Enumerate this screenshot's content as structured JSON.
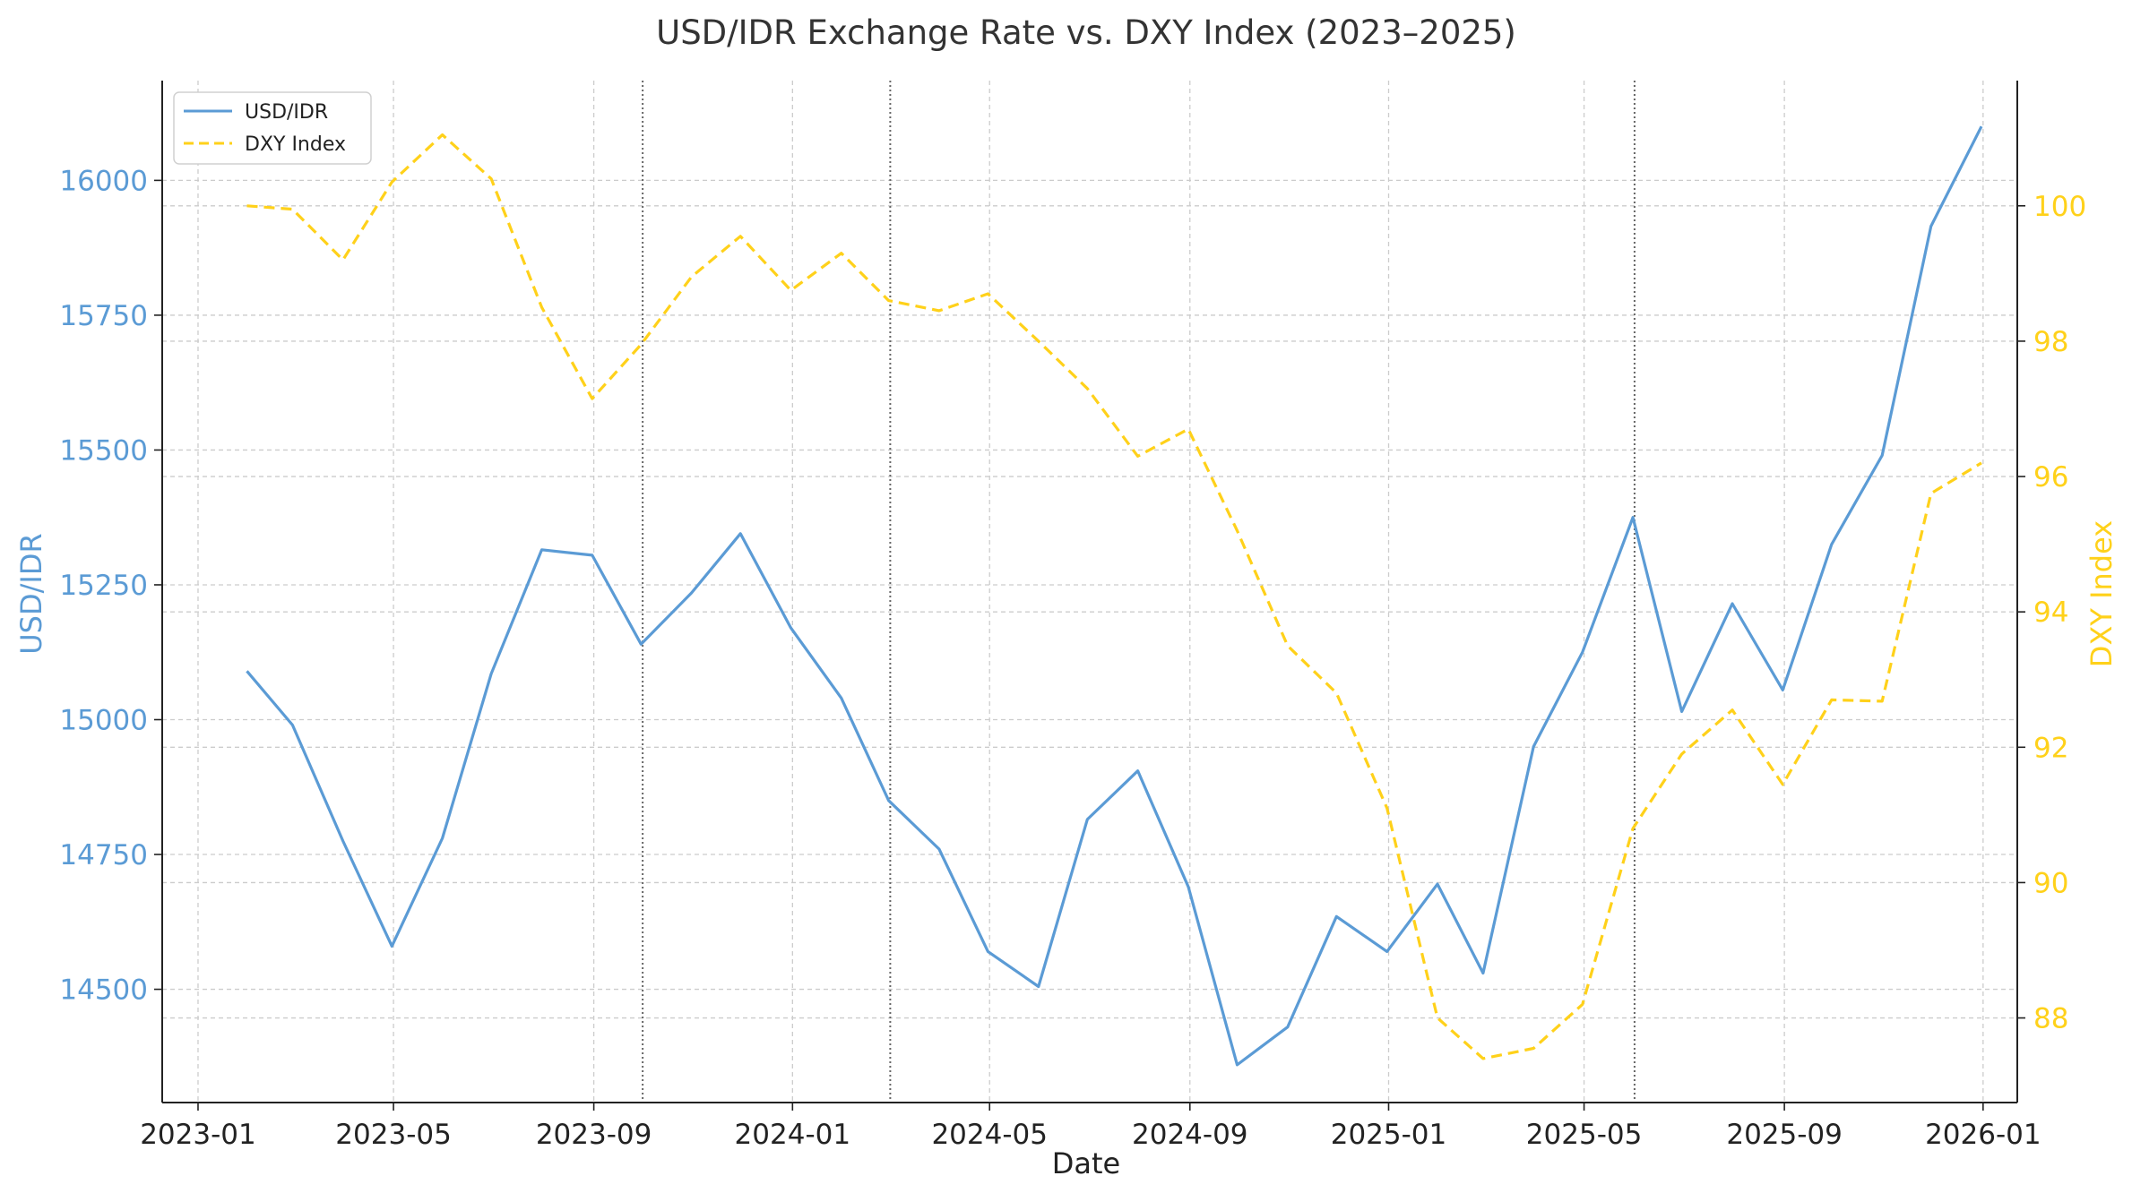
{
  "chart_data": {
    "type": "line",
    "title": "USD/IDR Exchange Rate vs. DXY Index (2023–2025)",
    "xlabel": "Date",
    "x_ticks": [
      "2023-01",
      "2023-05",
      "2023-09",
      "2024-01",
      "2024-05",
      "2024-09",
      "2025-01",
      "2025-05",
      "2025-09",
      "2026-01"
    ],
    "x_range": [
      "2022-12-10",
      "2026-01-22"
    ],
    "dates": [
      "2023-01-31",
      "2023-02-28",
      "2023-03-31",
      "2023-04-30",
      "2023-05-31",
      "2023-06-30",
      "2023-07-31",
      "2023-08-31",
      "2023-09-30",
      "2023-10-31",
      "2023-11-30",
      "2023-12-31",
      "2024-01-31",
      "2024-02-29",
      "2024-03-31",
      "2024-04-30",
      "2024-05-31",
      "2024-06-30",
      "2024-07-31",
      "2024-08-31",
      "2024-09-30",
      "2024-10-31",
      "2024-11-30",
      "2024-12-31",
      "2025-01-31",
      "2025-02-28",
      "2025-03-31",
      "2025-04-30",
      "2025-05-31",
      "2025-06-30",
      "2025-07-31",
      "2025-08-31",
      "2025-09-30",
      "2025-10-31",
      "2025-11-30",
      "2025-12-31"
    ],
    "event_lines": [
      "2023-10-01",
      "2024-03-01",
      "2025-06-01"
    ],
    "grid": true,
    "legend_position": "top-left",
    "y_left": {
      "label": "USD/IDR",
      "range": [
        14290,
        16185
      ],
      "ticks": [
        14500,
        14750,
        15000,
        15250,
        15500,
        15750,
        16000
      ],
      "color": "#5b9bd5"
    },
    "y_right": {
      "label": "DXY Index",
      "range": [
        86.75,
        101.85
      ],
      "ticks": [
        88,
        90,
        92,
        94,
        96,
        98,
        100
      ],
      "color": "#ffd11a"
    },
    "series": [
      {
        "name": "USD/IDR",
        "axis": "left",
        "style": "solid",
        "color": "#5b9bd5",
        "values": [
          15090,
          14990,
          14775,
          14580,
          14780,
          15085,
          15315,
          15305,
          15140,
          15235,
          15345,
          15170,
          15040,
          14850,
          14760,
          14570,
          14505,
          14815,
          14905,
          14690,
          14360,
          14430,
          14635,
          14570,
          14695,
          14530,
          14950,
          15125,
          15375,
          15015,
          15215,
          15055,
          15325,
          15490,
          15915,
          16100
        ]
      },
      {
        "name": "DXY Index",
        "axis": "right",
        "style": "dashed",
        "color": "#ffd11a",
        "values": [
          100.0,
          99.95,
          99.2,
          100.35,
          101.05,
          100.4,
          98.5,
          97.15,
          97.95,
          98.95,
          99.55,
          98.75,
          99.3,
          98.6,
          98.45,
          98.7,
          98.0,
          97.3,
          96.3,
          96.7,
          95.2,
          93.5,
          92.8,
          91.1,
          88.0,
          87.4,
          87.55,
          88.2,
          90.8,
          91.9,
          92.55,
          91.45,
          92.7,
          92.68,
          95.75,
          96.2
        ]
      }
    ]
  }
}
